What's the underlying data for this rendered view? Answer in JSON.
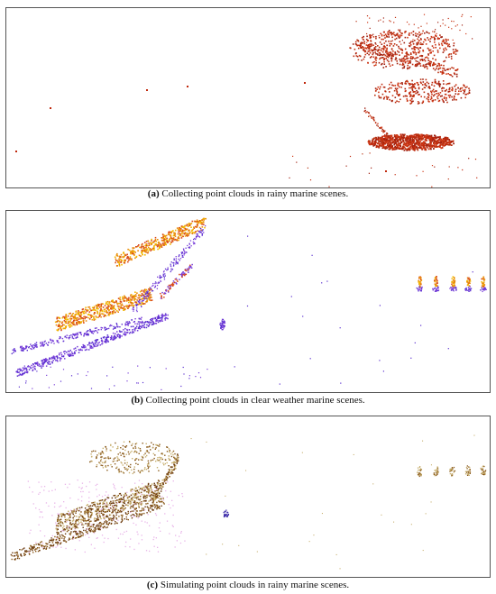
{
  "figure": {
    "panels": [
      {
        "id": "a",
        "label": "(a)",
        "caption": "Collecting point clouds in rainy marine scenes.",
        "palette": [
          "#c0280c",
          "#b8300f",
          "#d03a18",
          "#a02010"
        ]
      },
      {
        "id": "b",
        "label": "(b)",
        "caption": "Collecting point clouds in clear weather marine scenes.",
        "palette": [
          "#f2b800",
          "#e98a10",
          "#d94a1a",
          "#7a3fd9",
          "#5a2fd0"
        ]
      },
      {
        "id": "c",
        "label": "(c)",
        "caption": "Simulating point clouds in rainy marine scenes.",
        "palette": [
          "#c8b070",
          "#8a5a1a",
          "#6b3a10",
          "#e8b4e8",
          "#3a2aa8"
        ]
      }
    ]
  }
}
